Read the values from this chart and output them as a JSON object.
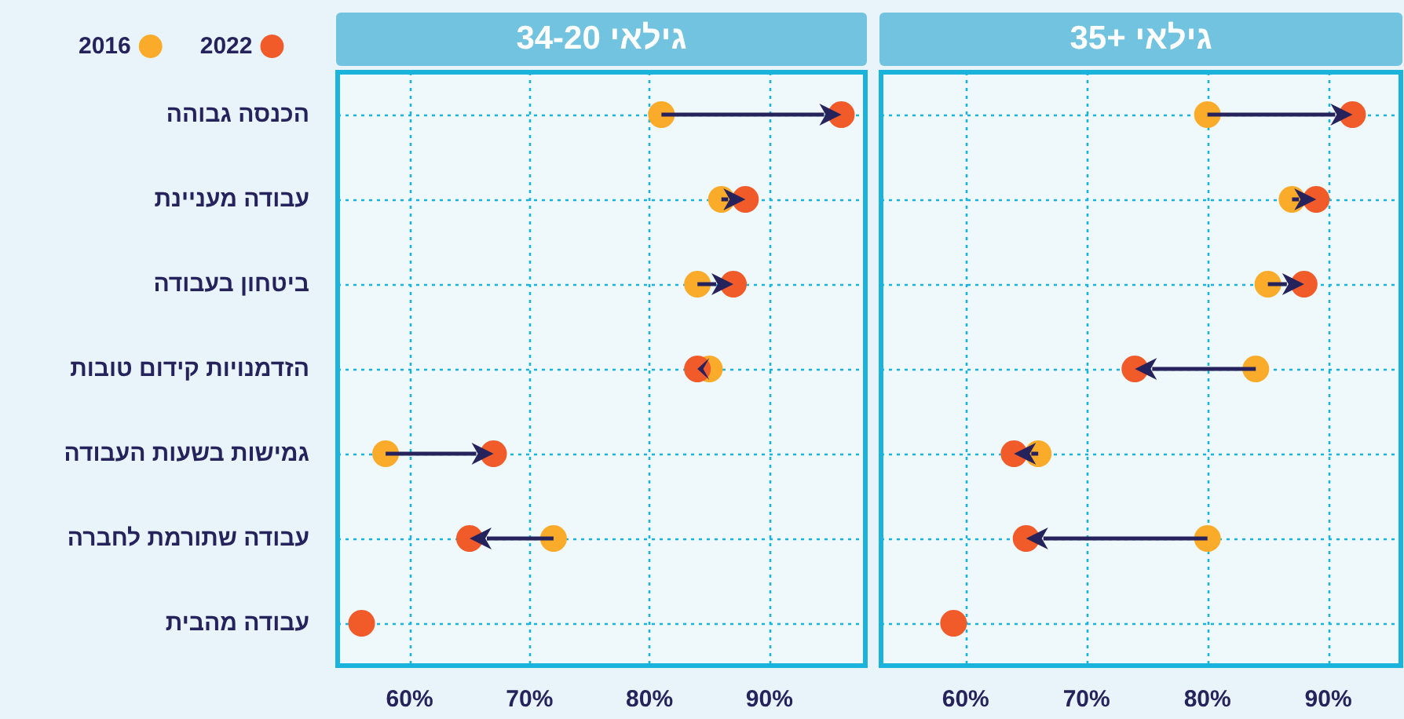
{
  "chart_data": [
    {
      "type": "scatter",
      "title": "גילאי 34-20",
      "categories": [
        "הכנסה גבוהה",
        "עבודה מעניינת",
        "ביטחון בעבודה",
        "הזדמנויות קידום טובות",
        "גמישות בשעות העבודה",
        "עבודה שתורמת לחברה",
        "עבודה מהבית"
      ],
      "series": [
        {
          "name": "2016",
          "color": "#fbab2a",
          "values": [
            81,
            86,
            84,
            85,
            58,
            72,
            null
          ]
        },
        {
          "name": "2022",
          "color": "#f15a29",
          "values": [
            96,
            88,
            87,
            84,
            67,
            65,
            56
          ]
        }
      ],
      "orientation": "horizontal",
      "xlim": [
        54,
        98
      ],
      "xticks": [
        {
          "value": 60,
          "label": "60%"
        },
        {
          "value": 70,
          "label": "70%"
        },
        {
          "value": 80,
          "label": "80%"
        },
        {
          "value": 90,
          "label": "90%"
        }
      ],
      "grid": true,
      "legend": "top left",
      "marker": "circle"
    },
    {
      "type": "scatter",
      "title": "גילאי +35",
      "categories": [
        null,
        null,
        null,
        null,
        null,
        null,
        null
      ],
      "series": [
        {
          "name": "2016",
          "color": "#fbab2a",
          "values": [
            80,
            87,
            85,
            84,
            66,
            80,
            null
          ]
        },
        {
          "name": "2022",
          "color": "#f15a29",
          "values": [
            92,
            89,
            88,
            74,
            64,
            65,
            59
          ]
        }
      ],
      "orientation": "horizontal",
      "xlim": [
        53,
        96
      ],
      "xticks": [
        {
          "value": 60,
          "label": "60%"
        },
        {
          "value": 70,
          "label": "70%"
        },
        {
          "value": 80,
          "label": "80%"
        },
        {
          "value": 90,
          "label": "90%"
        }
      ],
      "grid": true,
      "tick_labels": "x",
      "marker": "circle"
    }
  ]
}
